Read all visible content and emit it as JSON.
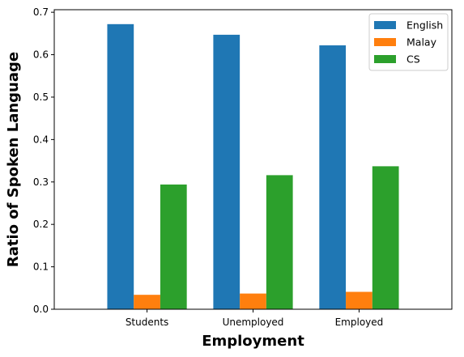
{
  "chart_data": {
    "type": "bar",
    "title": "",
    "xlabel": "Employment",
    "ylabel": "Ratio of Spoken Language",
    "categories": [
      "Students",
      "Unemployed",
      "Employed"
    ],
    "series": [
      {
        "name": "English",
        "values": [
          0.672,
          0.647,
          0.622
        ],
        "color": "#1f77b4"
      },
      {
        "name": "Malay",
        "values": [
          0.034,
          0.037,
          0.041
        ],
        "color": "#ff7f0e"
      },
      {
        "name": "CS",
        "values": [
          0.294,
          0.316,
          0.337
        ],
        "color": "#2ca02c"
      }
    ],
    "ylim": [
      0,
      0.706
    ],
    "yticks": [
      "0.0",
      "0.1",
      "0.2",
      "0.3",
      "0.4",
      "0.5",
      "0.6",
      "0.7"
    ],
    "legend": "top-right",
    "grid": false
  }
}
